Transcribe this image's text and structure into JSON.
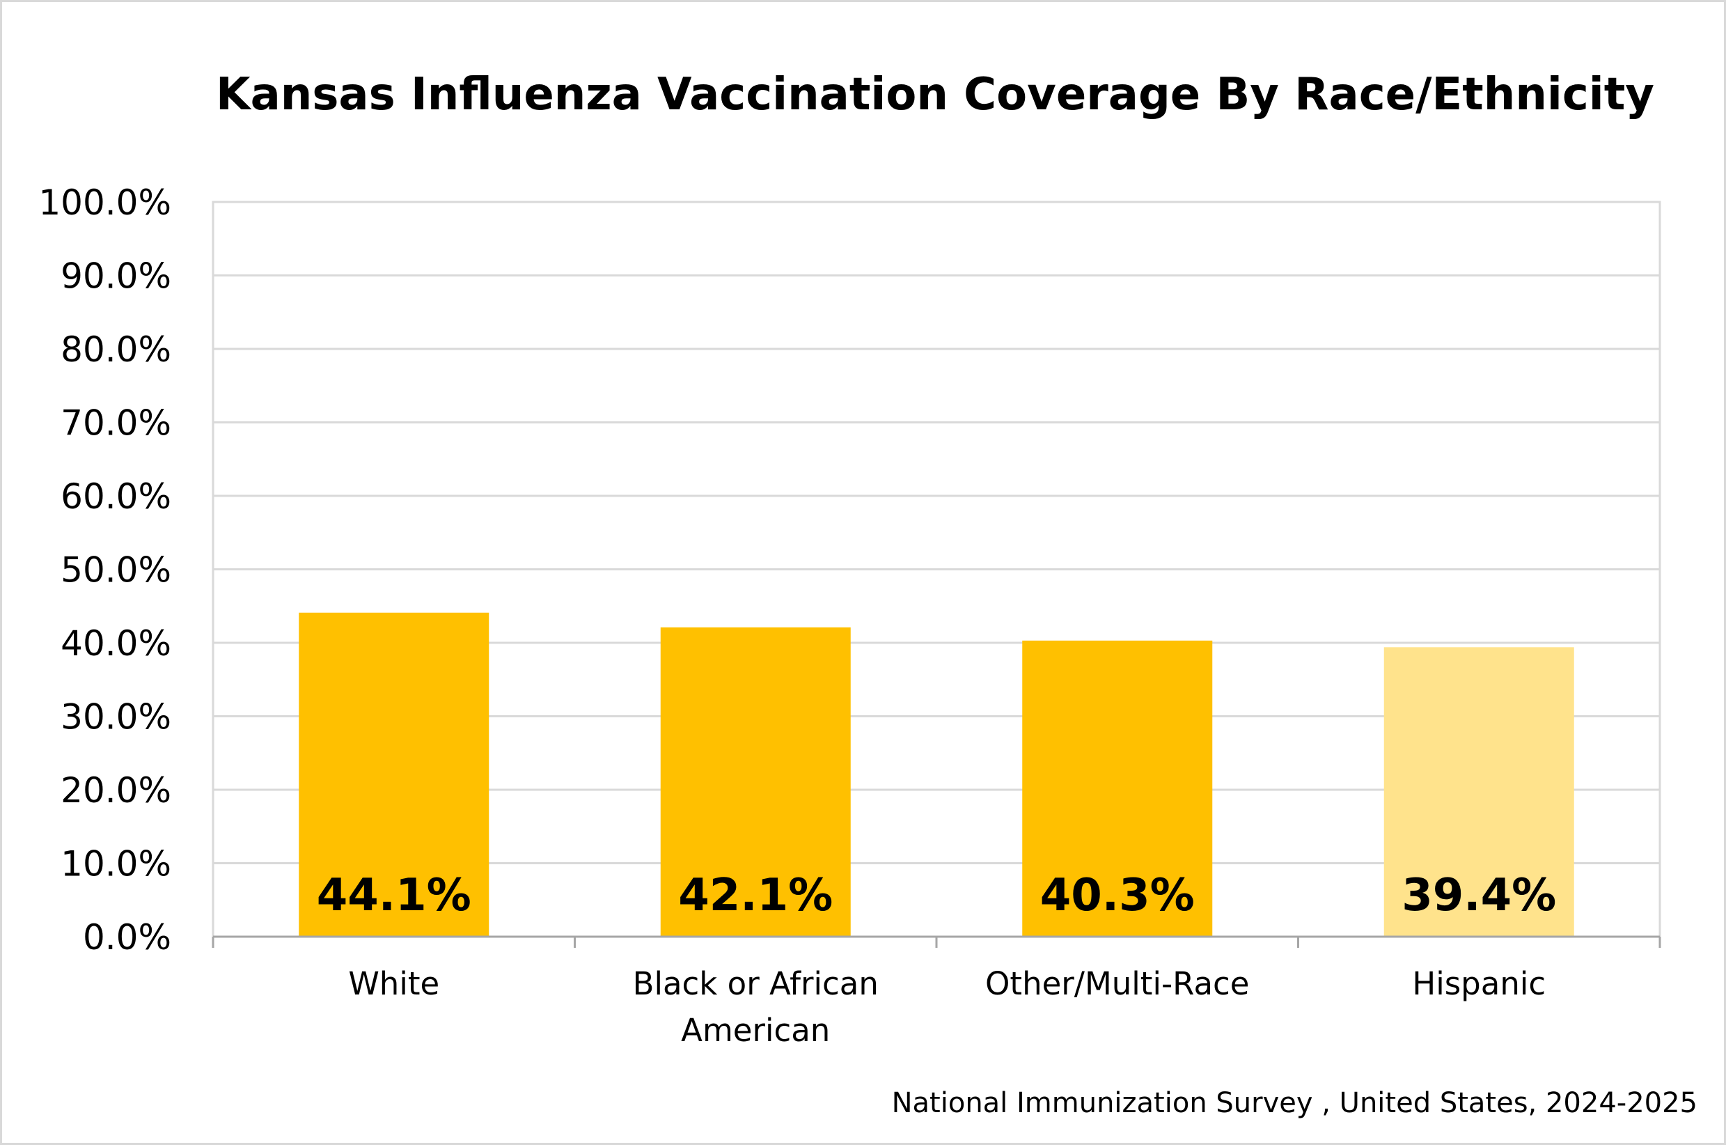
{
  "chart_data": {
    "type": "bar",
    "title": "Kansas Influenza Vaccination Coverage By Race/Ethnicity",
    "source_note": "National Immunization Survey , United States, 2024-2025",
    "categories": [
      [
        "White"
      ],
      [
        "Black or African",
        "American"
      ],
      [
        "Other/Multi-Race"
      ],
      [
        "Hispanic"
      ]
    ],
    "values": [
      44.1,
      42.1,
      40.3,
      39.4
    ],
    "data_labels": [
      "44.1%",
      "42.1%",
      "40.3%",
      "39.4%"
    ],
    "bar_colors": [
      "#FFC000",
      "#FFC000",
      "#FFC000",
      "#FFE38C"
    ],
    "ylim": [
      0,
      100
    ],
    "yticks": [
      0,
      10,
      20,
      30,
      40,
      50,
      60,
      70,
      80,
      90,
      100
    ],
    "ytick_labels": [
      "0.0%",
      "10.0%",
      "20.0%",
      "30.0%",
      "40.0%",
      "50.0%",
      "60.0%",
      "70.0%",
      "80.0%",
      "90.0%",
      "100.0%"
    ],
    "xlabel": "",
    "ylabel": "",
    "grid": true,
    "legend": "none",
    "gridline_color": "#D9D9D9",
    "axis_color": "#A6A6A6"
  }
}
